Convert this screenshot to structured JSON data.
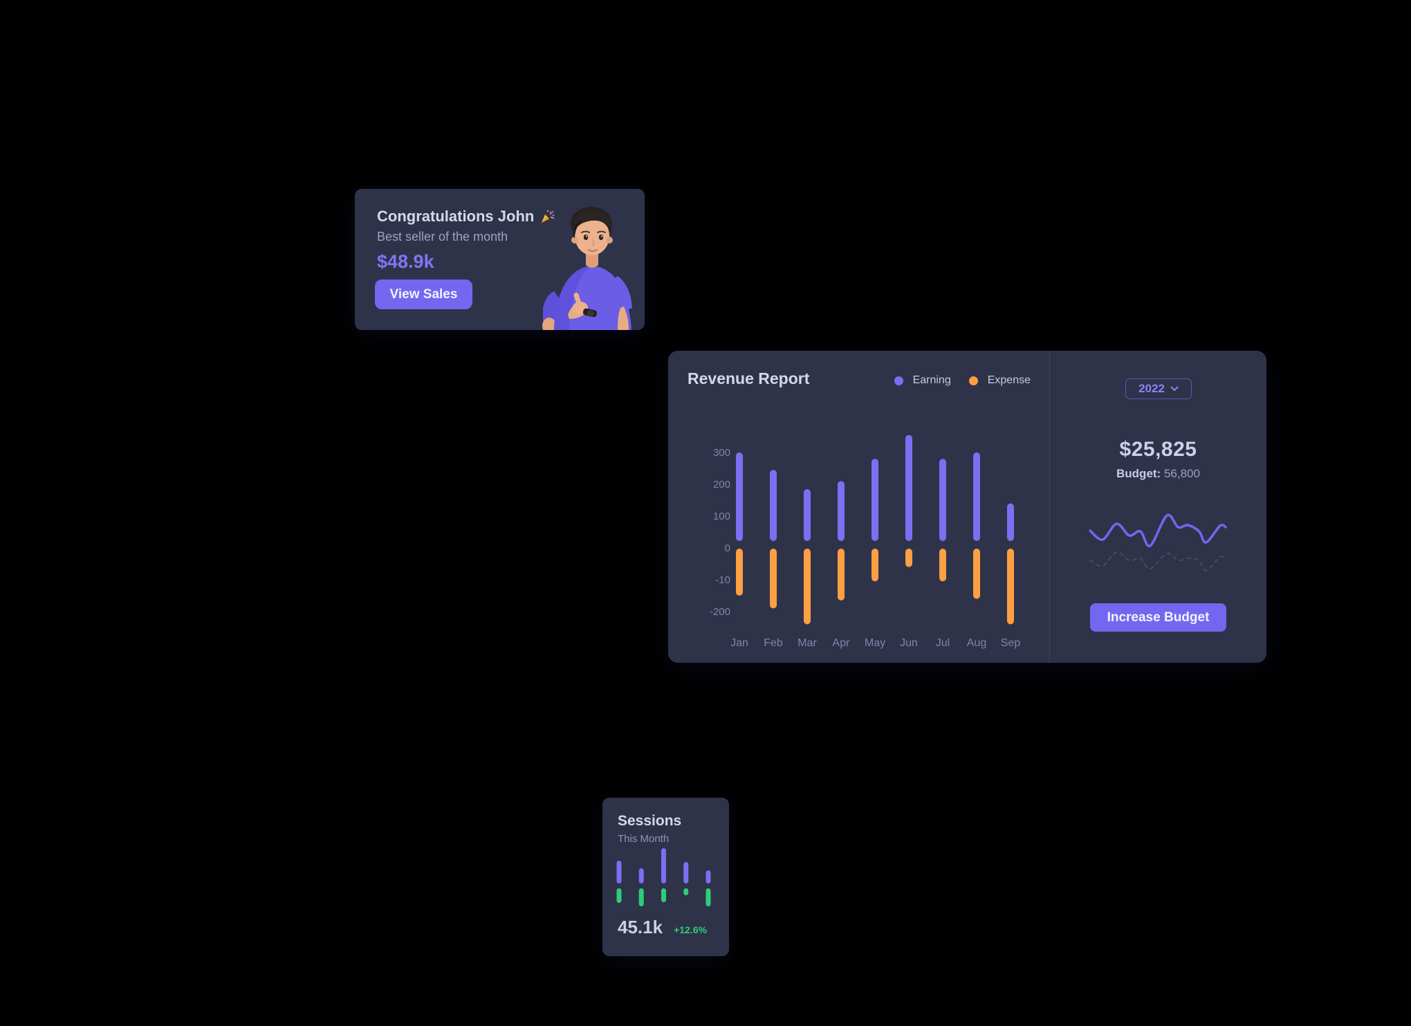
{
  "congrats_card": {
    "title": "Congratulations John",
    "celebration_icon": "party-popper",
    "subtitle": "Best seller of the month",
    "amount": "$48.9k",
    "view_sales_label": "View Sales"
  },
  "revenue_card": {
    "title": "Revenue Report",
    "legend": {
      "earning_label": "Earning",
      "expense_label": "Expense"
    },
    "year_selector_label": "2022",
    "total_amount": "$25,825",
    "budget_label": "Budget:",
    "budget_value": "56,800",
    "increase_budget_label": "Increase Budget"
  },
  "sessions_card": {
    "title": "Sessions",
    "subtitle": "This Month",
    "value": "45.1k",
    "delta": "+12.6%"
  },
  "colors": {
    "page_bg": "#000000",
    "card_bg": "#2F3349",
    "primary_purple": "#7367F0",
    "bar_purple": "#7B6FF2",
    "expense_orange": "#FF9F43",
    "success_green": "#2DCE76",
    "axis_label": "#8084A9",
    "dashed_line": "#565B78"
  },
  "chart_data": [
    {
      "id": "revenue-report",
      "type": "bar",
      "title": "Revenue Report",
      "categories": [
        "Jan",
        "Feb",
        "Mar",
        "Apr",
        "May",
        "Jun",
        "Jul",
        "Aug",
        "Sep"
      ],
      "series": [
        {
          "name": "Earning",
          "color": "#7B6FF2",
          "values": [
            300,
            245,
            185,
            210,
            280,
            355,
            280,
            300,
            140
          ]
        },
        {
          "name": "Expense",
          "color": "#FF9F43",
          "values": [
            -150,
            -190,
            -240,
            -165,
            -105,
            -60,
            -105,
            -160,
            -240
          ]
        }
      ],
      "ytick_labels": [
        "300",
        "200",
        "100",
        "0",
        "-10",
        "-200"
      ],
      "ylim": [
        -260,
        380
      ],
      "grid": false,
      "legend_position": "top-right"
    },
    {
      "id": "budget-sparkline",
      "type": "line",
      "x": [
        3,
        12,
        22,
        31,
        39,
        46,
        58,
        66,
        73,
        81,
        86,
        96,
        100
      ],
      "series": [
        {
          "name": "current-budget",
          "style": "solid",
          "color": "#7367F0",
          "values": [
            58,
            45,
            68,
            51,
            57,
            36,
            80,
            63,
            66,
            57,
            41,
            65,
            63
          ]
        },
        {
          "name": "previous-budget",
          "style": "dashed",
          "color": "#565B78",
          "values": [
            15,
            7,
            27,
            15,
            18,
            3,
            25,
            15,
            18,
            15,
            0,
            20,
            17
          ]
        }
      ],
      "grid": false,
      "axes": "none"
    },
    {
      "id": "sessions-mini",
      "type": "bar",
      "categories": [
        "1",
        "2",
        "3",
        "4",
        "5"
      ],
      "series": [
        {
          "name": "sessions-upper",
          "color": "#7B6FF2",
          "values": [
            33,
            22,
            51,
            31,
            19
          ]
        },
        {
          "name": "sessions-lower",
          "color": "#2DCE76",
          "values": [
            21,
            26,
            20,
            10,
            26
          ]
        }
      ],
      "grid": false,
      "axes": "none"
    }
  ]
}
